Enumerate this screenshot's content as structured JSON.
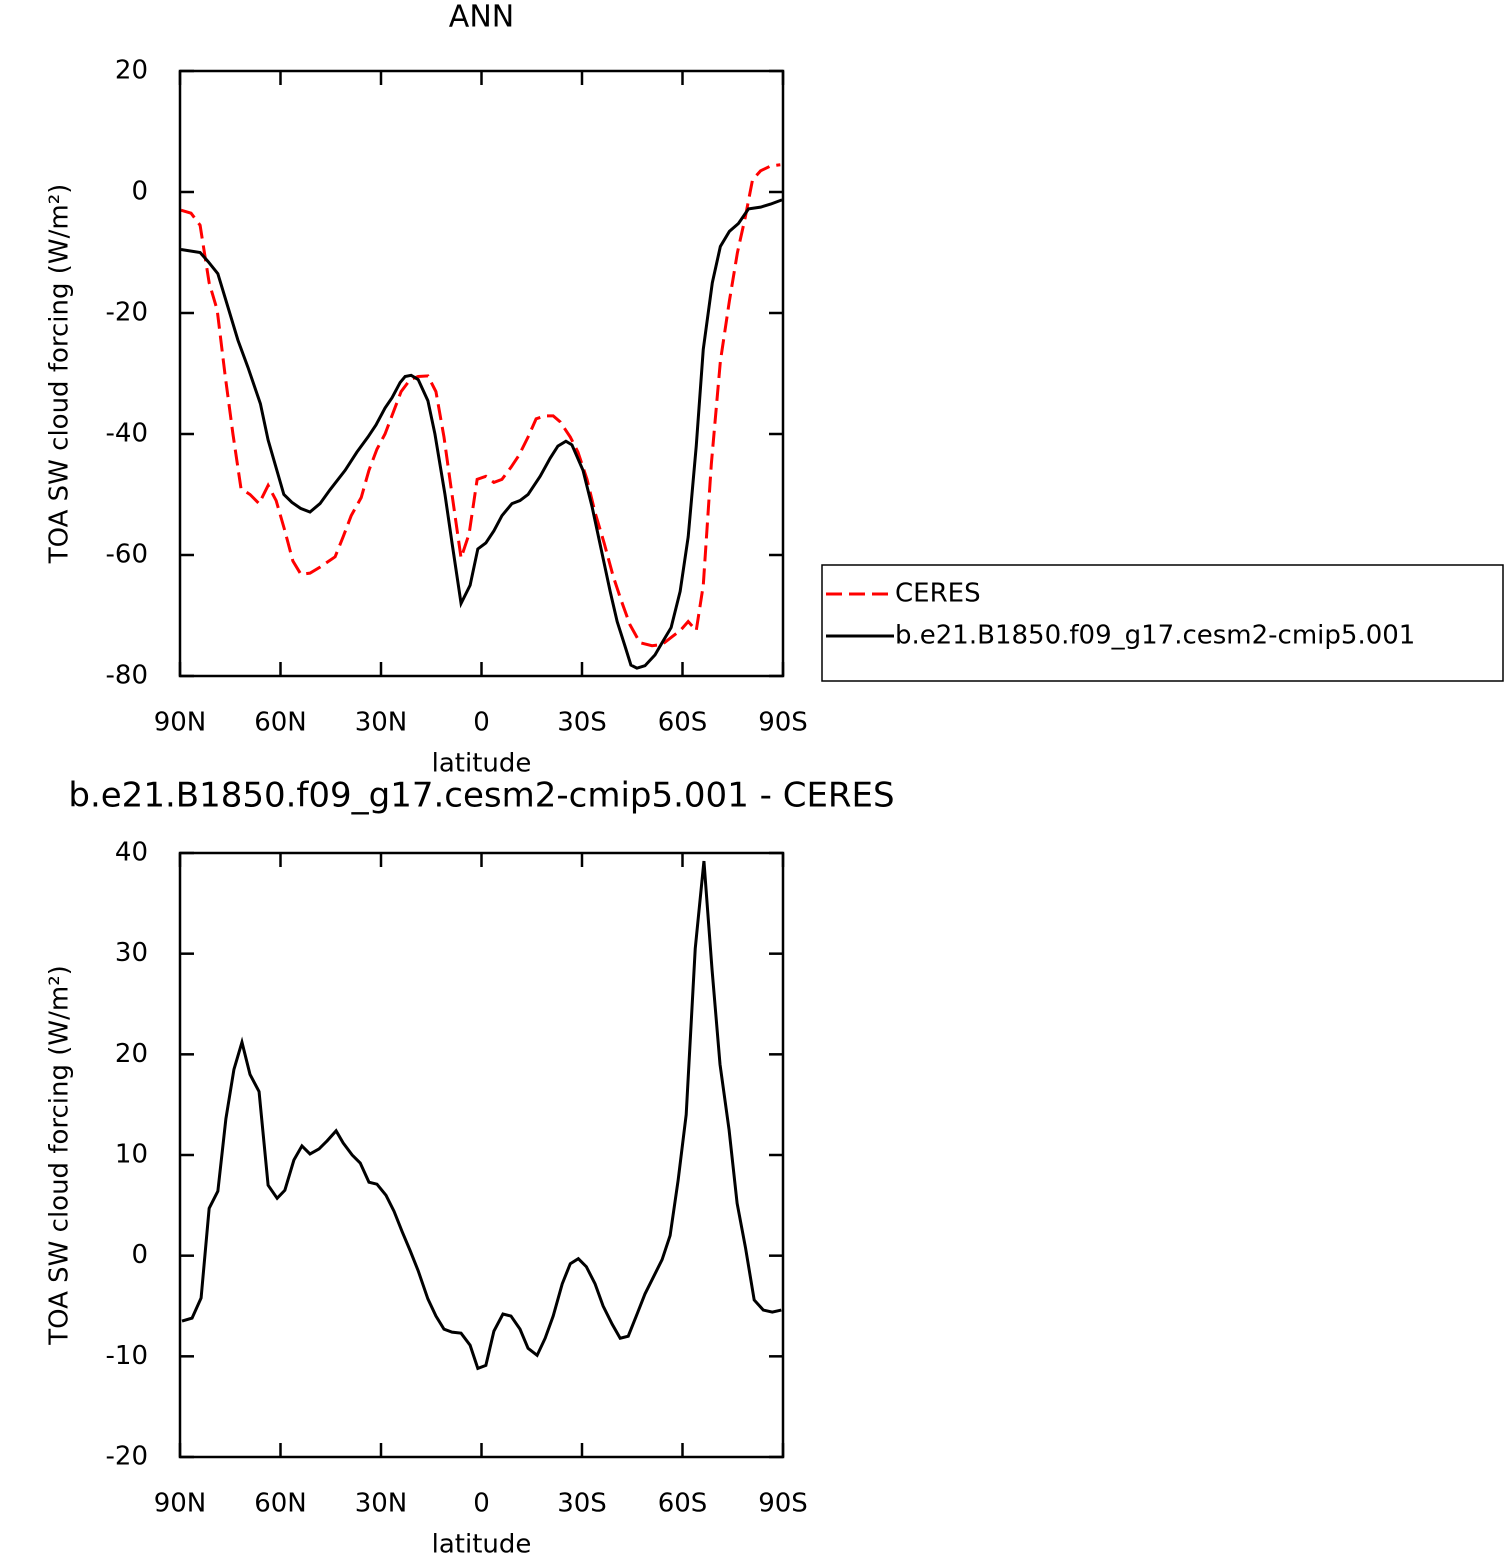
{
  "chart_data": [
    {
      "type": "line",
      "title": "ANN",
      "xlabel": "latitude",
      "ylabel": "TOA SW cloud forcing (W/m²)",
      "xlim": [
        90,
        -90
      ],
      "xticks": [
        {
          "value": 90,
          "label": "90N"
        },
        {
          "value": 60,
          "label": "60N"
        },
        {
          "value": 30,
          "label": "30N"
        },
        0,
        {
          "value": -30,
          "label": "30S"
        },
        {
          "value": -60,
          "label": "60S"
        },
        {
          "value": -90,
          "label": "90S"
        }
      ],
      "ylim": [
        -80,
        20
      ],
      "yticks": [
        -80,
        -60,
        -40,
        -20,
        0,
        20
      ],
      "grid": false,
      "legend": "right",
      "series": [
        {
          "name": "CERES",
          "color": "#ff0000",
          "line_style": "dashed",
          "x": [
            89.7,
            86.7,
            84,
            81.3,
            78.9,
            76.6,
            74.2,
            71.8,
            69.1,
            66.4,
            63.7,
            61.3,
            58.7,
            56.3,
            53.9,
            51.2,
            48.2,
            43.7,
            41.3,
            38.9,
            35.9,
            33.6,
            31.2,
            28.8,
            26.4,
            24,
            21.3,
            18.9,
            16,
            13.6,
            11.2,
            8.8,
            6.1,
            3.7,
            1.3,
            -1.3,
            -3.7,
            -6.1,
            -8.8,
            -11.2,
            -13.9,
            -16.3,
            -19,
            -21.4,
            -23.5,
            -26.5,
            -28.8,
            -31.5,
            -33.9,
            -36.6,
            -39.3,
            -41.7,
            -44.3,
            -47.3,
            -50.9,
            -53.9,
            -56.9,
            -59.3,
            -61.7,
            -64.1,
            -66.2,
            -68.6,
            -71.3,
            -74,
            -76.4,
            -78.8,
            -80.9,
            -83.3,
            -86.3,
            -89.2
          ],
          "values": [
            -3,
            -3.5,
            -5.5,
            -15,
            -19.5,
            -30,
            -40,
            -49,
            -50,
            -51.5,
            -48.5,
            -51,
            -56,
            -61,
            -63.2,
            -63,
            -62,
            -60.3,
            -57,
            -53.5,
            -50.5,
            -46,
            -42.5,
            -40,
            -36.5,
            -33,
            -31,
            -30.5,
            -30.4,
            -33,
            -40.5,
            -50,
            -60.5,
            -56.5,
            -47.5,
            -47,
            -48,
            -47.5,
            -45.5,
            -43.5,
            -40.5,
            -37.5,
            -37,
            -37,
            -38,
            -40.5,
            -43,
            -47.5,
            -53,
            -58,
            -63.5,
            -67.5,
            -71.5,
            -74.5,
            -75,
            -74.8,
            -73.5,
            -72.5,
            -71,
            -72.5,
            -65,
            -45,
            -28,
            -18,
            -10,
            -4,
            2,
            3.5,
            4.3,
            4.5
          ]
        },
        {
          "name": "b.e21.B1850.f09_g17.cesm2-cmip5.001",
          "color": "#000000",
          "line_style": "solid",
          "x": [
            89.7,
            84,
            81.6,
            78.7,
            75.7,
            72.7,
            69.7,
            66,
            63.7,
            59,
            56.6,
            54,
            51.2,
            48.2,
            45.2,
            40.7,
            37.2,
            33.9,
            31.5,
            28.8,
            26.7,
            24.3,
            22.8,
            21,
            18.9,
            16,
            13.9,
            10.9,
            8.8,
            6.1,
            3.4,
            1.1,
            -1.3,
            -3.7,
            -6.1,
            -9.1,
            -11.5,
            -13.9,
            -17.5,
            -20.5,
            -22.8,
            -25.2,
            -27,
            -30.3,
            -33,
            -35.7,
            -38.4,
            -40.5,
            -42.8,
            -44.6,
            -46.4,
            -48.8,
            -51.8,
            -53.9,
            -56.6,
            -59.3,
            -61.7,
            -64.1,
            -66.2,
            -68.9,
            -71.3,
            -74,
            -76.7,
            -79.7,
            -83.3,
            -86.3,
            -89.7
          ],
          "values": [
            -9.5,
            -10,
            -11.5,
            -13.5,
            -19,
            -24.5,
            -29,
            -35,
            -41,
            -50,
            -51.3,
            -52.3,
            -52.9,
            -51.5,
            -49.2,
            -46,
            -43,
            -40.5,
            -38.5,
            -35.7,
            -34,
            -31.5,
            -30.5,
            -30.3,
            -31,
            -34.5,
            -40,
            -50,
            -58,
            -68,
            -65,
            -59,
            -58,
            -56,
            -53.5,
            -51.5,
            -51,
            -50,
            -47,
            -44,
            -42,
            -41.2,
            -41.8,
            -46,
            -52,
            -59,
            -66,
            -71,
            -75,
            -78.2,
            -78.7,
            -78.3,
            -76.5,
            -74.5,
            -72,
            -66,
            -57,
            -42,
            -26,
            -15,
            -9,
            -6.5,
            -5.2,
            -2.8,
            -2.5,
            -2,
            -1.3
          ]
        }
      ]
    },
    {
      "type": "line",
      "title": "b.e21.B1850.f09_g17.cesm2-cmip5.001 - CERES",
      "xlabel": "latitude",
      "ylabel": "TOA SW cloud forcing (W/m²)",
      "xlim": [
        90,
        -90
      ],
      "xticks": [
        {
          "value": 90,
          "label": "90N"
        },
        {
          "value": 60,
          "label": "60N"
        },
        {
          "value": 30,
          "label": "30N"
        },
        0,
        {
          "value": -30,
          "label": "30S"
        },
        {
          "value": -60,
          "label": "60S"
        },
        {
          "value": -90,
          "label": "90S"
        }
      ],
      "ylim": [
        -20,
        40
      ],
      "yticks": [
        -20,
        -10,
        0,
        10,
        20,
        30,
        40
      ],
      "grid": false,
      "series": [
        {
          "color": "#000000",
          "line_style": "solid",
          "x": [
            89.4,
            86.4,
            83.7,
            81.3,
            78.7,
            76.3,
            73.9,
            71.5,
            69.1,
            66.4,
            63.7,
            61,
            58.7,
            56,
            53.6,
            51.2,
            48.5,
            46.1,
            43.4,
            41.3,
            38.6,
            36.2,
            33.6,
            31.2,
            28.5,
            26.1,
            23.7,
            21.3,
            18.9,
            16,
            13.6,
            11.2,
            8.8,
            6.1,
            3.4,
            1.1,
            -1.3,
            -3.7,
            -6.4,
            -8.8,
            -11.5,
            -13.9,
            -16.6,
            -19,
            -21.4,
            -24.1,
            -26.5,
            -28.9,
            -31.3,
            -33.9,
            -36.3,
            -39,
            -41.4,
            -43.8,
            -46.2,
            -48.8,
            -51.5,
            -53.9,
            -56.3,
            -58.7,
            -61.1,
            -63.8,
            -66.4,
            -68.8,
            -71.2,
            -73.9,
            -76.3,
            -78.8,
            -81.4,
            -84.1,
            -86.8,
            -89.5
          ],
          "values": [
            -6.5,
            -6.2,
            -4.2,
            4.7,
            6.4,
            13.6,
            18.5,
            21.2,
            18,
            16.3,
            7,
            5.7,
            6.5,
            9.5,
            10.9,
            10.1,
            10.6,
            11.4,
            12.4,
            11.2,
            10,
            9.2,
            7.3,
            7.1,
            6,
            4.4,
            2.4,
            0.5,
            -1.5,
            -4.3,
            -6,
            -7.3,
            -7.6,
            -7.7,
            -8.9,
            -11.2,
            -10.9,
            -7.5,
            -5.8,
            -6,
            -7.3,
            -9.2,
            -9.9,
            -8.2,
            -6,
            -2.8,
            -0.8,
            -0.3,
            -1.1,
            -2.8,
            -5,
            -6.8,
            -8.2,
            -8,
            -6,
            -3.8,
            -2,
            -0.4,
            2,
            7.5,
            14,
            30.5,
            39.2,
            28.5,
            19,
            12.5,
            5.2,
            0.8,
            -4.4,
            -5.4,
            -5.6,
            -5.4
          ]
        }
      ]
    }
  ]
}
